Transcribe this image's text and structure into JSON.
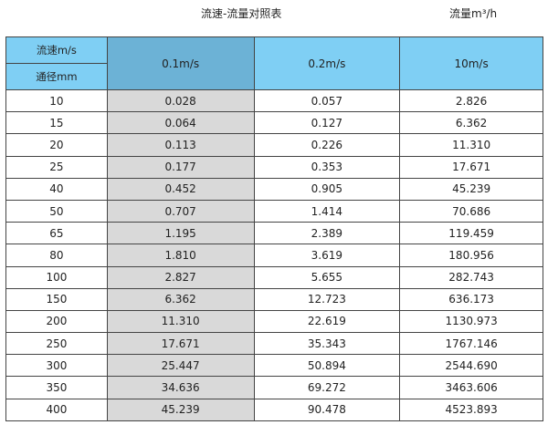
{
  "title": "流速-流量对照表",
  "unit": "流量m³/h",
  "header": {
    "velocity_label": "流速m/s",
    "diameter_label": "通径mm",
    "columns": [
      "0.1m/s",
      "0.2m/s",
      "10m/s"
    ]
  },
  "colors": {
    "header": "#7fcff4",
    "header_highlight": "#6cb2d6",
    "column_highlight": "#d9d9d9"
  },
  "rows": [
    {
      "dn": "10",
      "v": [
        "0.028",
        "0.057",
        "2.826"
      ]
    },
    {
      "dn": "15",
      "v": [
        "0.064",
        "0.127",
        "6.362"
      ]
    },
    {
      "dn": "20",
      "v": [
        "0.113",
        "0.226",
        "11.310"
      ]
    },
    {
      "dn": "25",
      "v": [
        "0.177",
        "0.353",
        "17.671"
      ]
    },
    {
      "dn": "40",
      "v": [
        "0.452",
        "0.905",
        "45.239"
      ]
    },
    {
      "dn": "50",
      "v": [
        "0.707",
        "1.414",
        "70.686"
      ]
    },
    {
      "dn": "65",
      "v": [
        "1.195",
        "2.389",
        "119.459"
      ]
    },
    {
      "dn": "80",
      "v": [
        "1.810",
        "3.619",
        "180.956"
      ]
    },
    {
      "dn": "100",
      "v": [
        "2.827",
        "5.655",
        "282.743"
      ]
    },
    {
      "dn": "150",
      "v": [
        "6.362",
        "12.723",
        "636.173"
      ]
    },
    {
      "dn": "200",
      "v": [
        "11.310",
        "22.619",
        "1130.973"
      ]
    },
    {
      "dn": "250",
      "v": [
        "17.671",
        "35.343",
        "1767.146"
      ]
    },
    {
      "dn": "300",
      "v": [
        "25.447",
        "50.894",
        "2544.690"
      ]
    },
    {
      "dn": "350",
      "v": [
        "34.636",
        "69.272",
        "3463.606"
      ]
    },
    {
      "dn": "400",
      "v": [
        "45.239",
        "90.478",
        "4523.893"
      ]
    }
  ]
}
